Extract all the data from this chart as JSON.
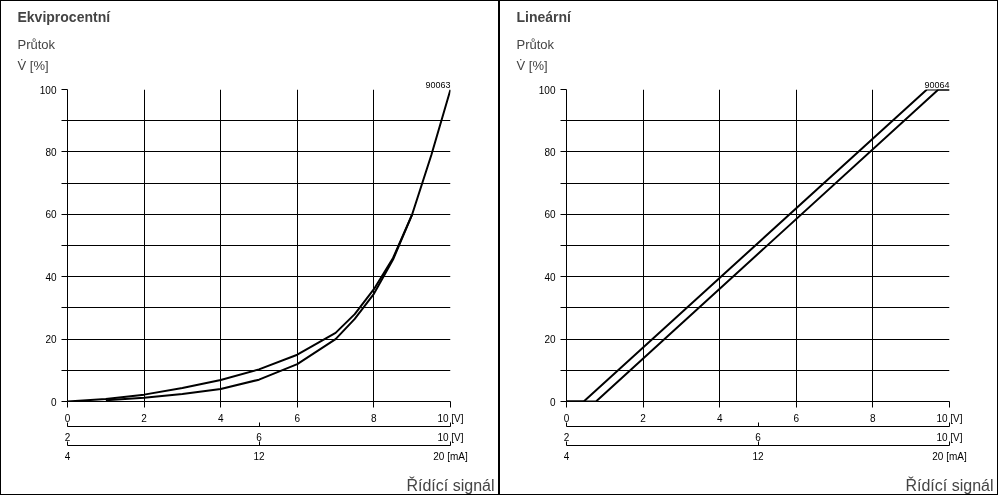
{
  "chart_data": [
    {
      "type": "line",
      "title": "Ekviprocentní",
      "ylabel": "Průtok\nV̇ [%]",
      "xlabel": "Řídící signál",
      "annotations": [
        "90063",
        "4",
        "12",
        "20 [mA]"
      ],
      "x": [
        0,
        1,
        2,
        3,
        4,
        5,
        6,
        7,
        7.5,
        8,
        8.5,
        9,
        9.5,
        10
      ],
      "series": [
        {
          "color": "#000000",
          "values": [
            0,
            0.8,
            2.2,
            4.3,
            6.9,
            10.3,
            15,
            22,
            28,
            36,
            46,
            60,
            79,
            100
          ]
        },
        {
          "color": "#000000",
          "x": [
            1,
            2,
            3,
            4,
            5,
            6,
            7,
            7.5,
            8,
            8.5,
            9
          ],
          "values": [
            0.4,
            1.2,
            2.4,
            4,
            7,
            12,
            20,
            26.5,
            34.5,
            45.5,
            60
          ]
        }
      ],
      "xlim": [
        0,
        10
      ],
      "ylim": [
        0,
        100
      ],
      "xticks": [
        0,
        2,
        4,
        6,
        8,
        {
          "value": 10,
          "label": "10 [V]"
        }
      ],
      "yticks": [
        0,
        {
          "value": 10,
          "label": null
        },
        20,
        {
          "value": 30,
          "label": null
        },
        40,
        {
          "value": 50,
          "label": null
        },
        60,
        {
          "value": 70,
          "label": null
        },
        80,
        {
          "value": 90,
          "label": null
        },
        100
      ],
      "x2lim": [
        2,
        10
      ],
      "x2ticks": [
        2,
        6,
        {
          "value": 10,
          "label": "10 [V]"
        }
      ],
      "grid": true,
      "line_style": "solid",
      "marker": "none"
    },
    {
      "type": "line",
      "title": "Lineární",
      "ylabel": "Průtok\nV̇ [%]",
      "xlabel": "Řídící signál",
      "annotations": [
        "90064",
        "4",
        "12",
        "20 [mA]"
      ],
      "series": [
        {
          "color": "#000000",
          "x": [
            0,
            0.45,
            9.41,
            10
          ],
          "values": [
            0,
            0,
            100,
            100
          ]
        },
        {
          "color": "#000000",
          "x": [
            0,
            0.77,
            9.71,
            10
          ],
          "values": [
            0,
            0,
            100,
            100
          ]
        }
      ],
      "xlim": [
        0,
        10
      ],
      "ylim": [
        0,
        100
      ],
      "xticks": [
        0,
        2,
        4,
        6,
        8,
        {
          "value": 10,
          "label": "10 [V]"
        }
      ],
      "yticks": [
        0,
        {
          "value": 10,
          "label": null
        },
        20,
        {
          "value": 30,
          "label": null
        },
        40,
        {
          "value": 50,
          "label": null
        },
        60,
        {
          "value": 70,
          "label": null
        },
        80,
        {
          "value": 90,
          "label": null
        },
        100
      ],
      "x2lim": [
        2,
        10
      ],
      "x2ticks": [
        2,
        6,
        {
          "value": 10,
          "label": "10 [V]"
        }
      ],
      "grid": true,
      "line_style": "solid",
      "marker": "none"
    }
  ]
}
